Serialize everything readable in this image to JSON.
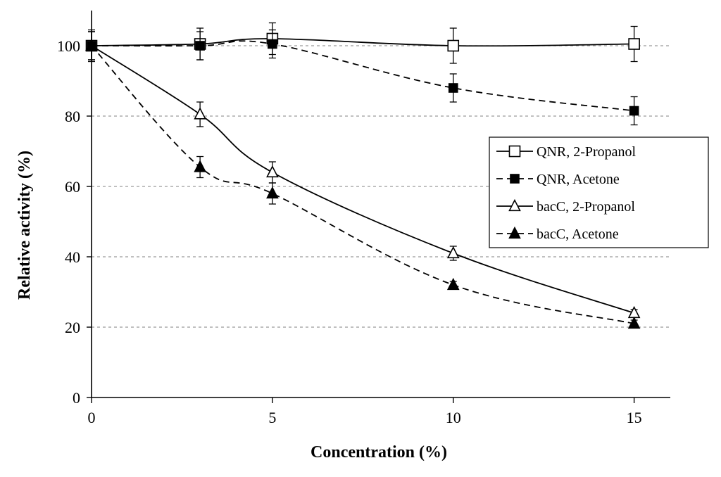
{
  "chart_data": {
    "type": "line",
    "title": "",
    "xlabel": "Concentration (%)",
    "ylabel": "Relative activity (%)",
    "xlim": [
      0,
      16
    ],
    "ylim": [
      0,
      110
    ],
    "x_ticks": [
      0,
      5,
      10,
      15
    ],
    "x_tick_labels": [
      "0",
      "5",
      "10",
      "15"
    ],
    "y_ticks": [
      0,
      20,
      40,
      60,
      80,
      100
    ],
    "y_tick_labels": [
      "0",
      "20",
      "40",
      "60",
      "80",
      "100"
    ],
    "grid": "horizontal dashed",
    "legend_position": "right",
    "series": [
      {
        "name": "QNR, 2-Propanol",
        "line": "solid",
        "marker": "open-square",
        "x": [
          0,
          3,
          5,
          10,
          15
        ],
        "y": [
          100,
          100.5,
          102,
          100,
          100.5
        ],
        "err": [
          4.5,
          4.5,
          4.5,
          5,
          5
        ]
      },
      {
        "name": "QNR, Acetone",
        "line": "dashed",
        "marker": "filled-square",
        "x": [
          0,
          3,
          5,
          10,
          15
        ],
        "y": [
          100,
          100,
          100.5,
          88,
          81.5
        ],
        "err": [
          4,
          4,
          4,
          4,
          4
        ]
      },
      {
        "name": "bacC, 2-Propanol",
        "line": "solid",
        "marker": "open-triangle",
        "x": [
          0,
          3,
          5,
          10,
          15
        ],
        "y": [
          100,
          80.5,
          64,
          41,
          24
        ],
        "err": [
          4,
          3.5,
          3,
          2,
          1
        ]
      },
      {
        "name": "bacC, Acetone",
        "line": "dashed",
        "marker": "filled-triangle",
        "x": [
          0,
          3,
          5,
          10,
          15
        ],
        "y": [
          100,
          65.5,
          58,
          32,
          21
        ],
        "err": [
          4,
          3,
          3,
          1,
          1
        ]
      }
    ]
  },
  "colors": {
    "ink": "#000000",
    "grid": "#9a9a9a",
    "background": "#ffffff"
  }
}
